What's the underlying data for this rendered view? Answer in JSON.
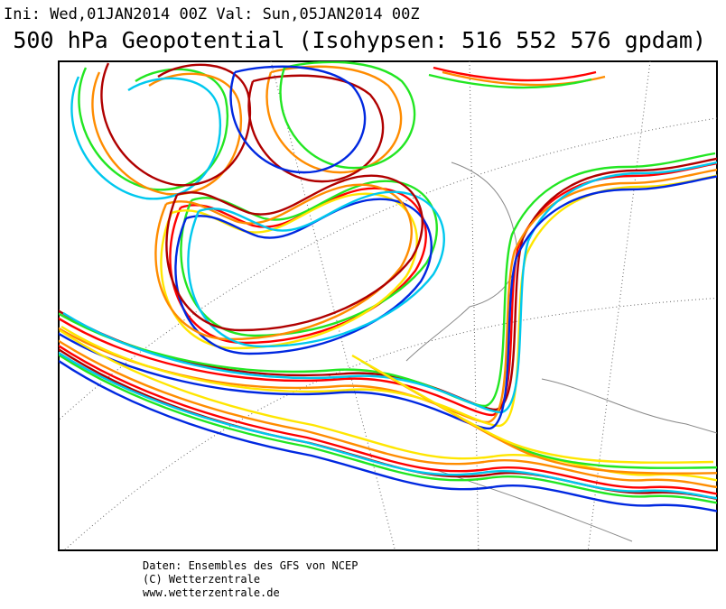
{
  "header": {
    "init_line": "Ini: Wed,01JAN2014 00Z Val: Sun,05JAN2014 00Z",
    "title": "500 hPa Geopotential (Isohypsen: 516 552 576 gpdam)"
  },
  "footer": {
    "lines": [
      "Daten: Ensembles des GFS von NCEP",
      "(C) Wetterzentrale",
      "www.wetterzentrale.de"
    ]
  }
}
